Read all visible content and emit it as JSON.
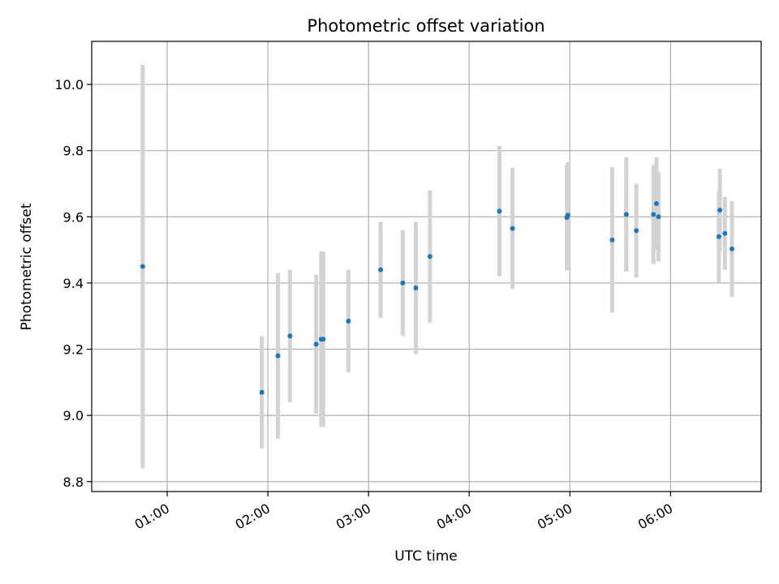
{
  "chart_data": {
    "type": "scatter",
    "title": "Photometric offset variation",
    "xlabel": "UTC time",
    "ylabel": "Photometric offset",
    "xlim_hours": [
      0.25,
      6.9
    ],
    "ylim": [
      8.77,
      10.13
    ],
    "grid": true,
    "x_ticks": [
      {
        "value": 1,
        "label": "01:00"
      },
      {
        "value": 2,
        "label": "02:00"
      },
      {
        "value": 3,
        "label": "03:00"
      },
      {
        "value": 4,
        "label": "04:00"
      },
      {
        "value": 5,
        "label": "05:00"
      },
      {
        "value": 6,
        "label": "06:00"
      }
    ],
    "y_ticks": [
      {
        "value": 8.8,
        "label": "8.8"
      },
      {
        "value": 9.0,
        "label": "9.0"
      },
      {
        "value": 9.2,
        "label": "9.2"
      },
      {
        "value": 9.4,
        "label": "9.4"
      },
      {
        "value": 9.6,
        "label": "9.6"
      },
      {
        "value": 9.8,
        "label": "9.8"
      },
      {
        "value": 10.0,
        "label": "10.0"
      }
    ],
    "colors": {
      "point": "#1f77b4",
      "errorbar": "#d3d3d3",
      "grid": "#b0b0b0"
    },
    "points": [
      {
        "time": "00:45",
        "x": 0.757,
        "y": 9.45,
        "yerr": 0.61
      },
      {
        "time": "01:56",
        "x": 1.94,
        "y": 9.07,
        "yerr": 0.17
      },
      {
        "time": "02:06",
        "x": 2.1,
        "y": 9.18,
        "yerr": 0.25
      },
      {
        "time": "02:13",
        "x": 2.22,
        "y": 9.24,
        "yerr": 0.2
      },
      {
        "time": "02:29",
        "x": 2.48,
        "y": 9.215,
        "yerr": 0.21
      },
      {
        "time": "02:31",
        "x": 2.53,
        "y": 9.23,
        "yerr": 0.265
      },
      {
        "time": "02:33",
        "x": 2.55,
        "y": 9.23,
        "yerr": 0.265
      },
      {
        "time": "02:48",
        "x": 2.8,
        "y": 9.285,
        "yerr": 0.155
      },
      {
        "time": "03:07",
        "x": 3.12,
        "y": 9.44,
        "yerr": 0.145
      },
      {
        "time": "03:20",
        "x": 3.34,
        "y": 9.4,
        "yerr": 0.16
      },
      {
        "time": "03:28",
        "x": 3.47,
        "y": 9.385,
        "yerr": 0.2
      },
      {
        "time": "03:37",
        "x": 3.61,
        "y": 9.48,
        "yerr": 0.2
      },
      {
        "time": "04:18",
        "x": 4.3,
        "y": 9.617,
        "yerr": 0.197
      },
      {
        "time": "04:26",
        "x": 4.43,
        "y": 9.565,
        "yerr": 0.183
      },
      {
        "time": "04:58",
        "x": 4.97,
        "y": 9.598,
        "yerr": 0.16
      },
      {
        "time": "04:59",
        "x": 4.98,
        "y": 9.605,
        "yerr": 0.16
      },
      {
        "time": "05:25",
        "x": 5.42,
        "y": 9.53,
        "yerr": 0.22
      },
      {
        "time": "05:33",
        "x": 5.56,
        "y": 9.607,
        "yerr": 0.173
      },
      {
        "time": "05:40",
        "x": 5.66,
        "y": 9.558,
        "yerr": 0.142
      },
      {
        "time": "05:50",
        "x": 5.83,
        "y": 9.607,
        "yerr": 0.15
      },
      {
        "time": "05:52",
        "x": 5.86,
        "y": 9.64,
        "yerr": 0.14
      },
      {
        "time": "05:53",
        "x": 5.88,
        "y": 9.6,
        "yerr": 0.135
      },
      {
        "time": "06:29",
        "x": 6.48,
        "y": 9.54,
        "yerr": 0.138
      },
      {
        "time": "06:29",
        "x": 6.49,
        "y": 9.62,
        "yerr": 0.125
      },
      {
        "time": "06:32",
        "x": 6.54,
        "y": 9.55,
        "yerr": 0.11
      },
      {
        "time": "06:37",
        "x": 6.61,
        "y": 9.503,
        "yerr": 0.145
      }
    ]
  }
}
